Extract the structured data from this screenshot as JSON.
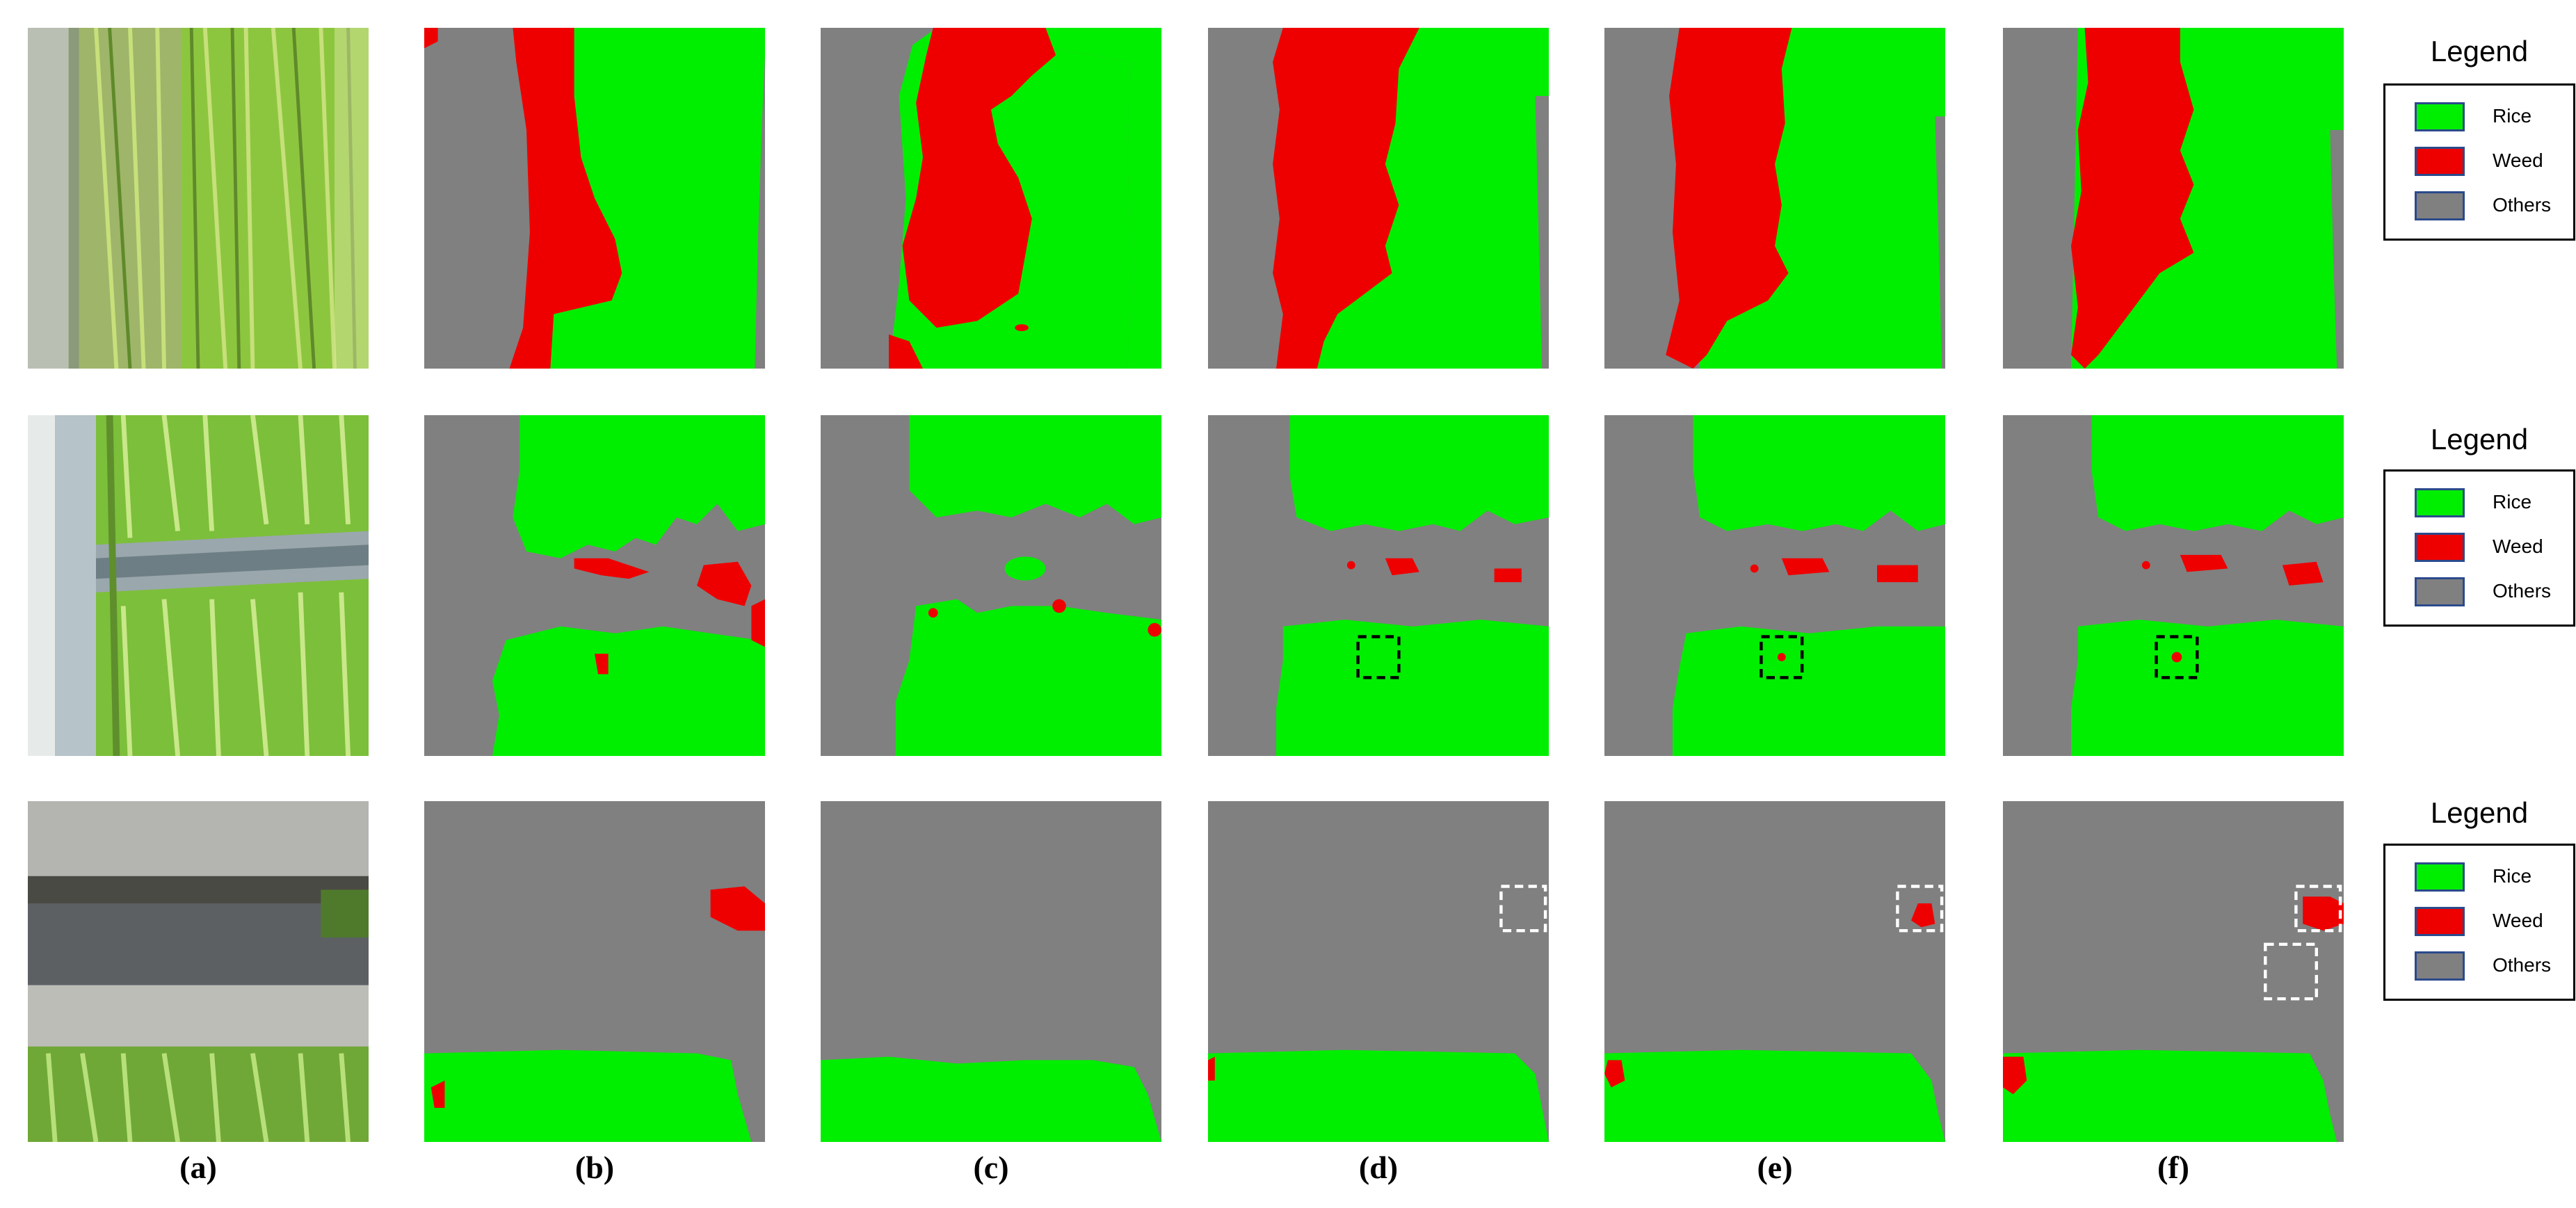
{
  "figure": {
    "panel_captions": [
      "(a)",
      "(b)",
      "(c)",
      "(d)",
      "(e)",
      "(f)"
    ],
    "legend": {
      "title": "Legend",
      "items": [
        {
          "label": "Rice",
          "color": "#00ee00"
        },
        {
          "label": "Weed",
          "color": "#ee0000"
        },
        {
          "label": "Others",
          "color": "#808080"
        }
      ]
    },
    "rows": [
      {
        "content": "rice field with weed strip along a concrete edge"
      },
      {
        "content": "rice seedlings separated by a plastic-lined ditch"
      },
      {
        "content": "concrete ridge with rice at the bottom"
      }
    ]
  }
}
